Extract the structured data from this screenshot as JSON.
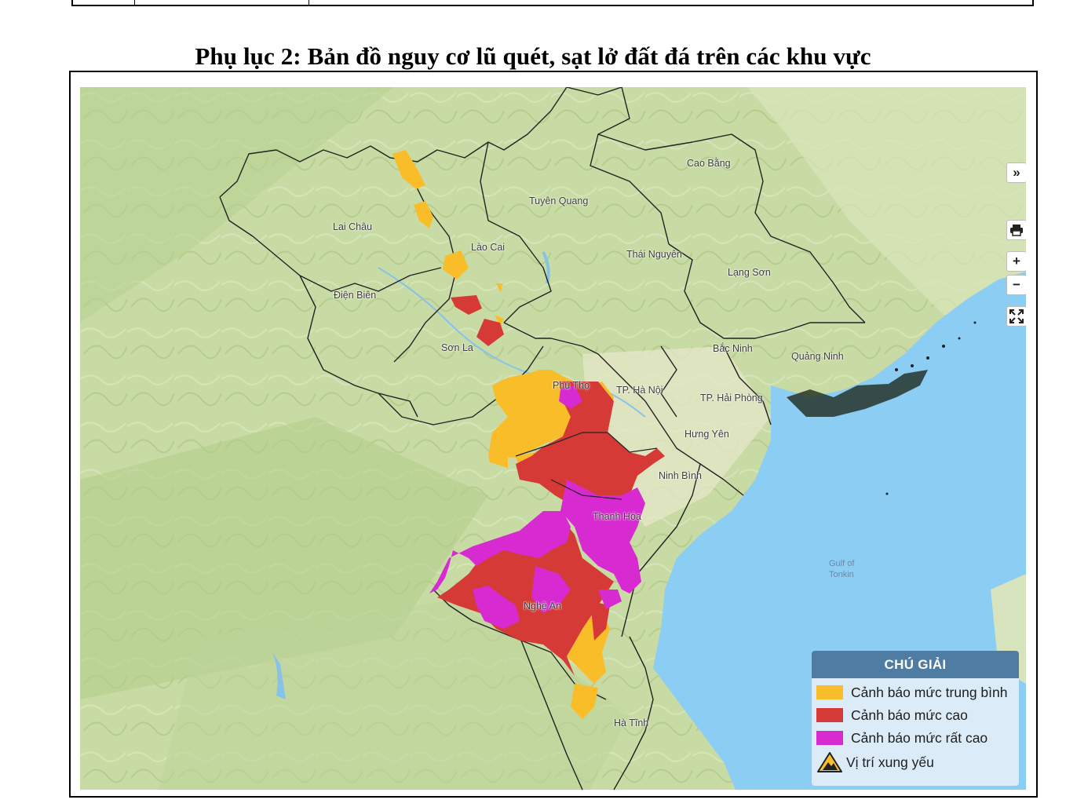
{
  "document": {
    "title": "Phụ lục 2: Bản đồ nguy cơ lũ quét, sạt lở đất đá trên các khu vực"
  },
  "map": {
    "places": [
      {
        "id": "cao-bang",
        "label": "Cao Bằng"
      },
      {
        "id": "tuyen-quang",
        "label": "Tuyên Quang"
      },
      {
        "id": "lai-chau",
        "label": "Lai Châu"
      },
      {
        "id": "lao-cai",
        "label": "Lào Cai"
      },
      {
        "id": "thai-nguyen",
        "label": "Thái Nguyên"
      },
      {
        "id": "lang-son",
        "label": "Lạng Sơn"
      },
      {
        "id": "dien-bien",
        "label": "Điện Biên"
      },
      {
        "id": "son-la",
        "label": "Sơn La"
      },
      {
        "id": "bac-ninh",
        "label": "Bắc Ninh"
      },
      {
        "id": "quang-ninh",
        "label": "Quảng Ninh"
      },
      {
        "id": "phu-tho",
        "label": "Phú Thọ"
      },
      {
        "id": "ha-noi",
        "label": "TP. Hà Nội"
      },
      {
        "id": "hai-phong",
        "label": "TP. Hải Phòng"
      },
      {
        "id": "hung-yen",
        "label": "Hưng Yên"
      },
      {
        "id": "ninh-binh",
        "label": "Ninh Bình"
      },
      {
        "id": "thanh-hoa",
        "label": "Thanh Hóa"
      },
      {
        "id": "nghe-an",
        "label": "Nghệ An"
      },
      {
        "id": "ha-tinh",
        "label": "Hà Tĩnh"
      }
    ],
    "sea_label": {
      "line1": "Gulf of",
      "line2": "Tonkin"
    },
    "controls": {
      "expand": "»",
      "print_icon": "printer-icon",
      "zoom_in": "+",
      "zoom_out": "−",
      "fullscreen_icon": "fullscreen-icon"
    }
  },
  "legend": {
    "title": "CHÚ GIẢI",
    "items": [
      {
        "label": "Cảnh báo mức trung bình",
        "color": "#f9bd2a"
      },
      {
        "label": "Cảnh báo mức cao",
        "color": "#d63a37"
      },
      {
        "label": "Cảnh báo mức rất cao",
        "color": "#d72ad1"
      },
      {
        "label": "Vị trí xung yếu",
        "icon": "warning-triangle-icon"
      }
    ]
  },
  "colors": {
    "sea": "#8ccdf4",
    "land": "#c9dca6",
    "medium": "#f9bd2a",
    "high": "#d63a37",
    "very_high": "#d72ad1"
  }
}
